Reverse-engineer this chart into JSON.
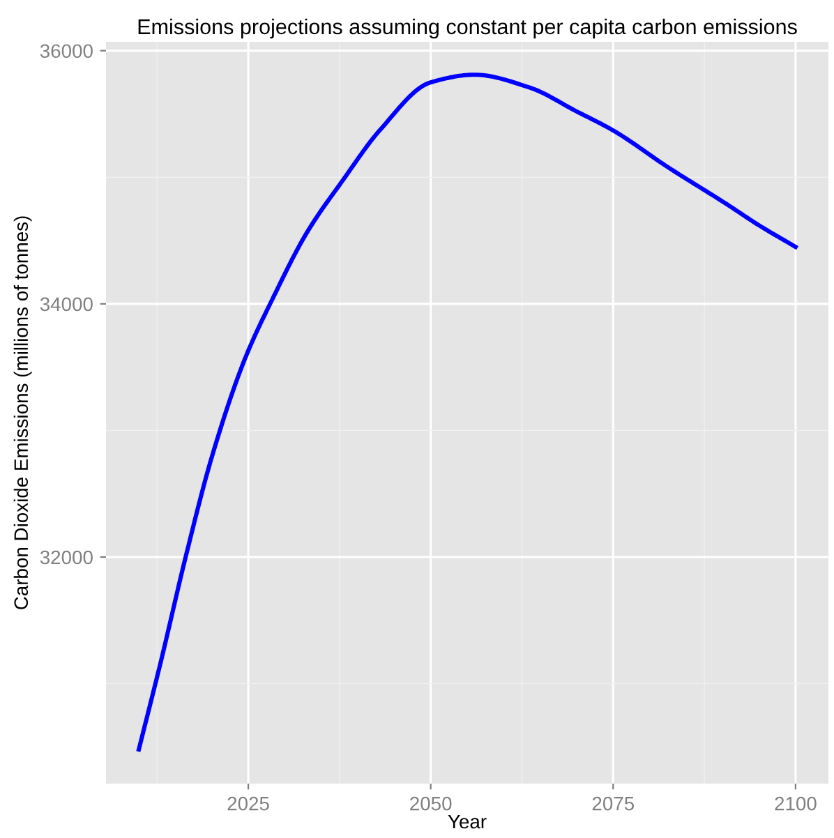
{
  "chart_data": {
    "type": "line",
    "title": "Emissions projections assuming constant per capita carbon emissions",
    "xlabel": "Year",
    "ylabel": "Carbon Dioxide Emissions (millions of tonnes)",
    "x": [
      2010,
      2013,
      2016.5,
      2020,
      2024.5,
      2028.5,
      2033,
      2038,
      2043,
      2050,
      2056,
      2063.5,
      2070,
      2075,
      2082.5,
      2090.5,
      2095,
      2100
    ],
    "series": [
      {
        "color": "#0000ff",
        "values": [
          30480,
          31170,
          32020,
          32790,
          33560,
          34060,
          34560,
          34980,
          35370,
          35750,
          35810,
          35710,
          35520,
          35370,
          35080,
          34790,
          34620,
          34450
        ]
      }
    ],
    "xlim": [
      2005.5,
      2104.5
    ],
    "ylim": [
      30210,
      36070
    ],
    "xticks": [
      2025,
      2050,
      2075,
      2100
    ],
    "yticks": [
      32000,
      34000,
      36000
    ],
    "grid": true,
    "marker": "none",
    "line_style": "solid"
  }
}
